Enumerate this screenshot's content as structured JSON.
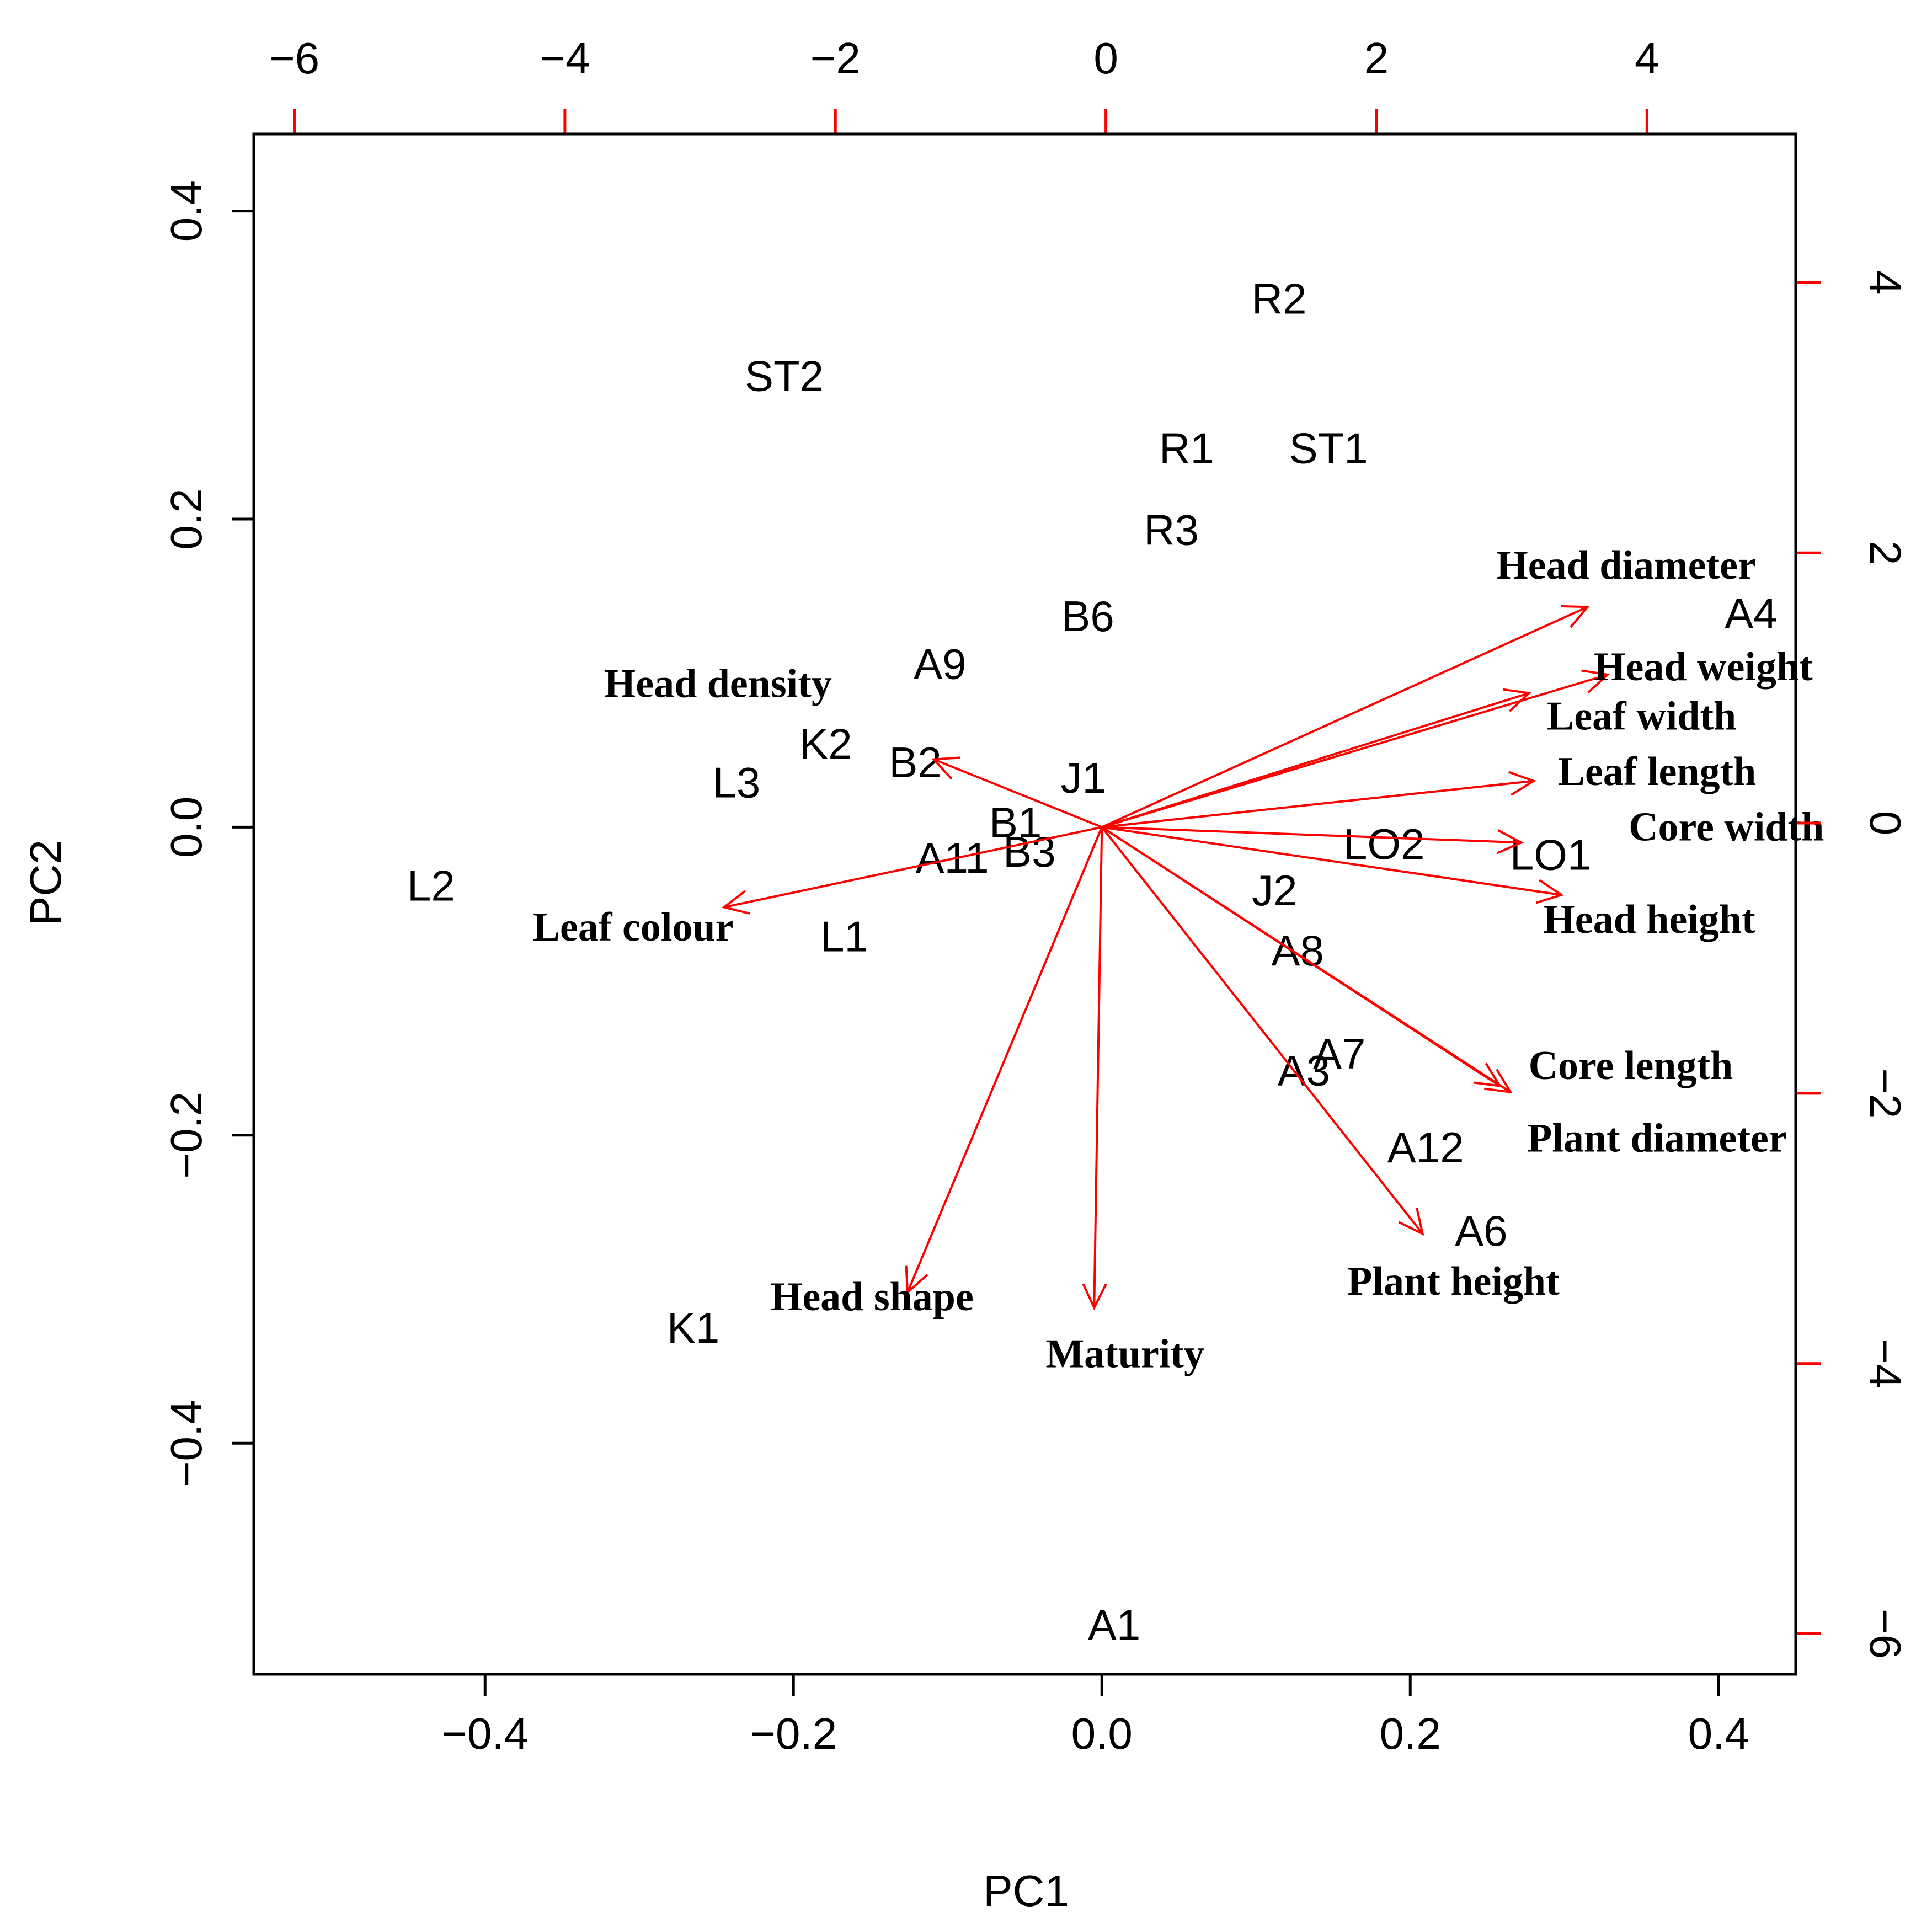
{
  "chart_data": {
    "type": "scatter",
    "subtype": "biplot",
    "title": "",
    "xlabel": "PC1",
    "ylabel": "PC2",
    "xlim": [
      -0.55,
      0.45
    ],
    "ylim": [
      -0.55,
      0.45
    ],
    "xticks": [
      {
        "value": -0.4,
        "label": "−0.4"
      },
      {
        "value": -0.2,
        "label": "−0.2"
      },
      {
        "value": 0.0,
        "label": "0.0"
      },
      {
        "value": 0.2,
        "label": "0.2"
      },
      {
        "value": 0.4,
        "label": "0.4"
      }
    ],
    "yticks": [
      {
        "value": -0.4,
        "label": "−0.4"
      },
      {
        "value": -0.2,
        "label": "−0.2"
      },
      {
        "value": 0.0,
        "label": "0.0"
      },
      {
        "value": 0.2,
        "label": "0.2"
      },
      {
        "value": 0.4,
        "label": "0.4"
      }
    ],
    "secondary_xlim": [
      -6.3,
      5.1
    ],
    "secondary_ylim": [
      -6.3,
      5.1
    ],
    "secondary_xticks": [
      {
        "value": -6,
        "label": "−6"
      },
      {
        "value": -4,
        "label": "−4"
      },
      {
        "value": -2,
        "label": "−2"
      },
      {
        "value": 0,
        "label": "0"
      },
      {
        "value": 2,
        "label": "2"
      },
      {
        "value": 4,
        "label": "4"
      }
    ],
    "secondary_yticks": [
      {
        "value": -6,
        "label": "−6"
      },
      {
        "value": -4,
        "label": "−4"
      },
      {
        "value": -2,
        "label": "−2"
      },
      {
        "value": 0,
        "label": "0"
      },
      {
        "value": 2,
        "label": "2"
      },
      {
        "value": 4,
        "label": "4"
      }
    ],
    "observations": [
      {
        "label": "R2",
        "x": 0.115,
        "y": 0.343
      },
      {
        "label": "ST2",
        "x": -0.206,
        "y": 0.293
      },
      {
        "label": "R1",
        "x": 0.055,
        "y": 0.246
      },
      {
        "label": "ST1",
        "x": 0.147,
        "y": 0.246
      },
      {
        "label": "R3",
        "x": 0.045,
        "y": 0.193
      },
      {
        "label": "B6",
        "x": -0.009,
        "y": 0.137
      },
      {
        "label": "A4",
        "x": 0.421,
        "y": 0.139
      },
      {
        "label": "A9",
        "x": -0.105,
        "y": 0.106
      },
      {
        "label": "K2",
        "x": -0.179,
        "y": 0.054
      },
      {
        "label": "B2",
        "x": -0.121,
        "y": 0.042
      },
      {
        "label": "L3",
        "x": -0.237,
        "y": 0.029
      },
      {
        "label": "J1",
        "x": -0.012,
        "y": 0.032
      },
      {
        "label": "B1",
        "x": -0.056,
        "y": 0.003
      },
      {
        "label": "B3",
        "x": -0.047,
        "y": -0.016
      },
      {
        "label": "A11",
        "x": -0.097,
        "y": -0.02
      },
      {
        "label": "LO2",
        "x": 0.183,
        "y": -0.011
      },
      {
        "label": "LO1",
        "x": 0.291,
        "y": -0.018
      },
      {
        "label": "L2",
        "x": -0.435,
        "y": -0.038
      },
      {
        "label": "J2",
        "x": 0.112,
        "y": -0.041
      },
      {
        "label": "L1",
        "x": -0.167,
        "y": -0.071
      },
      {
        "label": "A8",
        "x": 0.127,
        "y": -0.08
      },
      {
        "label": "A7",
        "x": 0.154,
        "y": -0.147
      },
      {
        "label": "A3",
        "x": 0.131,
        "y": -0.158
      },
      {
        "label": "A12",
        "x": 0.21,
        "y": -0.208
      },
      {
        "label": "A6",
        "x": 0.246,
        "y": -0.262
      },
      {
        "label": "K1",
        "x": -0.265,
        "y": -0.325
      },
      {
        "label": "A1",
        "x": 0.008,
        "y": -0.518
      }
    ],
    "loadings": [
      {
        "label": "Head diameter",
        "x": 0.315,
        "y": 0.143,
        "label_x": 0.34,
        "label_y": 0.17
      },
      {
        "label": "Head weight",
        "x": 0.328,
        "y": 0.099,
        "label_x": 0.39,
        "label_y": 0.104
      },
      {
        "label": "Leaf width",
        "x": 0.277,
        "y": 0.087,
        "label_x": 0.35,
        "label_y": 0.072
      },
      {
        "label": "Leaf length",
        "x": 0.28,
        "y": 0.03,
        "label_x": 0.36,
        "label_y": 0.036
      },
      {
        "label": "Core width",
        "x": 0.272,
        "y": -0.01,
        "label_x": 0.405,
        "label_y": 0.0
      },
      {
        "label": "Head height",
        "x": 0.298,
        "y": -0.044,
        "label_x": 0.355,
        "label_y": -0.06
      },
      {
        "label": "Core length",
        "x": 0.265,
        "y": -0.172,
        "label_x": 0.343,
        "label_y": -0.155
      },
      {
        "label": "Plant diameter",
        "x": 0.258,
        "y": -0.168,
        "label_x": 0.36,
        "label_y": -0.202
      },
      {
        "label": "Plant height",
        "x": 0.208,
        "y": -0.264,
        "label_x": 0.228,
        "label_y": -0.295
      },
      {
        "label": "Maturity",
        "x": -0.005,
        "y": -0.312,
        "label_x": 0.015,
        "label_y": -0.342
      },
      {
        "label": "Head shape",
        "x": -0.126,
        "y": -0.302,
        "label_x": -0.149,
        "label_y": -0.305
      },
      {
        "label": "Leaf colour",
        "x": -0.245,
        "y": -0.052,
        "label_x": -0.304,
        "label_y": -0.065
      },
      {
        "label": "Head density",
        "x": -0.109,
        "y": 0.044,
        "label_x": -0.249,
        "label_y": 0.093
      }
    ],
    "colors": {
      "points_text": "#000000",
      "arrows": "#ff0000",
      "secondary_ticks": "#ff0000",
      "axes": "#000000"
    }
  }
}
